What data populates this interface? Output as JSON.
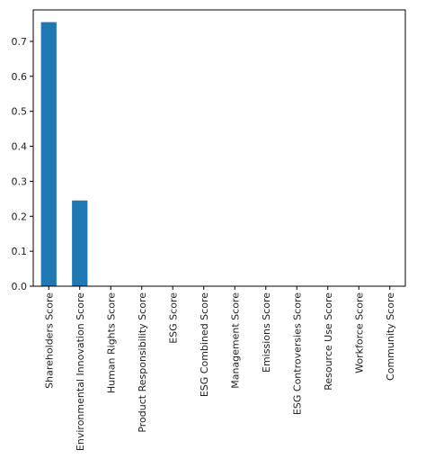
{
  "chart_data": {
    "type": "bar",
    "title": "",
    "xlabel": "",
    "ylabel": "",
    "categories": [
      "Shareholders Score",
      "Environmental Innovation Score",
      "Human Rights Score",
      "Product Responsibility Score",
      "ESG Score",
      "ESG Combined Score",
      "Management Score",
      "Emissions Score",
      "ESG Controversies Score",
      "Resource Use Score",
      "Workforce Score",
      "Community Score"
    ],
    "values": [
      0.755,
      0.245,
      0,
      0,
      0,
      0,
      0,
      0,
      0,
      0,
      0,
      0
    ],
    "ylim": [
      0,
      0.79
    ],
    "yticks": [
      0.0,
      0.1,
      0.2,
      0.3,
      0.4,
      0.5,
      0.6,
      0.7
    ],
    "ytick_labels": [
      "0.0",
      "0.1",
      "0.2",
      "0.3",
      "0.4",
      "0.5",
      "0.6",
      "0.7"
    ],
    "bar_color": "#1f77b4",
    "grid": false,
    "legend": "none"
  }
}
